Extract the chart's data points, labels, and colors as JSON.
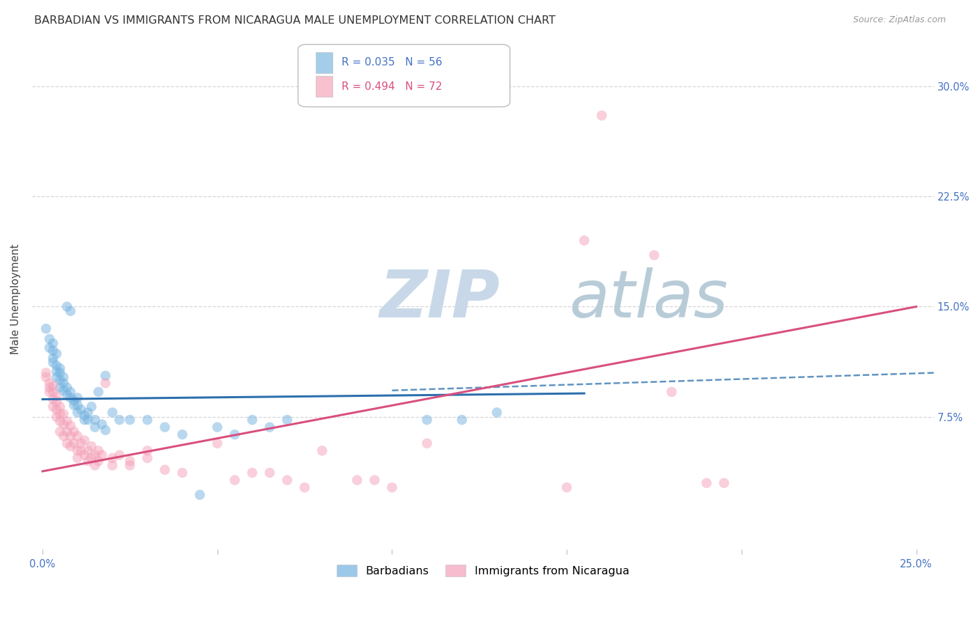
{
  "title": "BARBADIAN VS IMMIGRANTS FROM NICARAGUA MALE UNEMPLOYMENT CORRELATION CHART",
  "source": "Source: ZipAtlas.com",
  "ylabel_label": "Male Unemployment",
  "xlim": [
    -0.003,
    0.255
  ],
  "ylim": [
    -0.015,
    0.325
  ],
  "xtick_positions": [
    0.0,
    0.05,
    0.1,
    0.15,
    0.2,
    0.25
  ],
  "xticklabels": [
    "0.0%",
    "",
    "",
    "",
    "",
    "25.0%"
  ],
  "ytick_positions": [
    0.075,
    0.15,
    0.225,
    0.3
  ],
  "yticklabels": [
    "7.5%",
    "15.0%",
    "22.5%",
    "30.0%"
  ],
  "legend_r_blue": "R = 0.035",
  "legend_n_blue": "N = 56",
  "legend_r_pink": "R = 0.494",
  "legend_n_pink": "N = 72",
  "blue_color": "#74b3e0",
  "pink_color": "#f4a0b8",
  "blue_line_color": "#2c6fad",
  "pink_line_color": "#d94f7e",
  "blue_line": [
    [
      0.0,
      0.087
    ],
    [
      0.155,
      0.091
    ]
  ],
  "blue_dash_line": [
    [
      0.1,
      0.093
    ],
    [
      0.255,
      0.105
    ]
  ],
  "pink_line": [
    [
      0.0,
      0.038
    ],
    [
      0.25,
      0.15
    ]
  ],
  "blue_scatter": [
    [
      0.001,
      0.135
    ],
    [
      0.002,
      0.128
    ],
    [
      0.002,
      0.122
    ],
    [
      0.003,
      0.125
    ],
    [
      0.003,
      0.12
    ],
    [
      0.003,
      0.115
    ],
    [
      0.003,
      0.112
    ],
    [
      0.004,
      0.118
    ],
    [
      0.004,
      0.11
    ],
    [
      0.004,
      0.106
    ],
    [
      0.004,
      0.102
    ],
    [
      0.005,
      0.108
    ],
    [
      0.005,
      0.105
    ],
    [
      0.005,
      0.1
    ],
    [
      0.005,
      0.095
    ],
    [
      0.006,
      0.102
    ],
    [
      0.006,
      0.098
    ],
    [
      0.006,
      0.093
    ],
    [
      0.007,
      0.095
    ],
    [
      0.007,
      0.09
    ],
    [
      0.007,
      0.15
    ],
    [
      0.008,
      0.147
    ],
    [
      0.008,
      0.092
    ],
    [
      0.008,
      0.088
    ],
    [
      0.009,
      0.086
    ],
    [
      0.009,
      0.083
    ],
    [
      0.01,
      0.088
    ],
    [
      0.01,
      0.083
    ],
    [
      0.01,
      0.078
    ],
    [
      0.011,
      0.08
    ],
    [
      0.012,
      0.076
    ],
    [
      0.012,
      0.073
    ],
    [
      0.013,
      0.078
    ],
    [
      0.013,
      0.073
    ],
    [
      0.014,
      0.082
    ],
    [
      0.015,
      0.073
    ],
    [
      0.015,
      0.068
    ],
    [
      0.016,
      0.092
    ],
    [
      0.017,
      0.07
    ],
    [
      0.018,
      0.103
    ],
    [
      0.018,
      0.066
    ],
    [
      0.02,
      0.078
    ],
    [
      0.022,
      0.073
    ],
    [
      0.025,
      0.073
    ],
    [
      0.03,
      0.073
    ],
    [
      0.035,
      0.068
    ],
    [
      0.04,
      0.063
    ],
    [
      0.045,
      0.022
    ],
    [
      0.05,
      0.068
    ],
    [
      0.055,
      0.063
    ],
    [
      0.06,
      0.073
    ],
    [
      0.065,
      0.068
    ],
    [
      0.07,
      0.073
    ],
    [
      0.11,
      0.073
    ],
    [
      0.12,
      0.073
    ],
    [
      0.13,
      0.078
    ]
  ],
  "pink_scatter": [
    [
      0.001,
      0.105
    ],
    [
      0.001,
      0.102
    ],
    [
      0.002,
      0.098
    ],
    [
      0.002,
      0.095
    ],
    [
      0.002,
      0.092
    ],
    [
      0.003,
      0.096
    ],
    [
      0.003,
      0.092
    ],
    [
      0.003,
      0.087
    ],
    [
      0.003,
      0.082
    ],
    [
      0.004,
      0.089
    ],
    [
      0.004,
      0.085
    ],
    [
      0.004,
      0.08
    ],
    [
      0.004,
      0.075
    ],
    [
      0.005,
      0.082
    ],
    [
      0.005,
      0.077
    ],
    [
      0.005,
      0.072
    ],
    [
      0.005,
      0.065
    ],
    [
      0.006,
      0.077
    ],
    [
      0.006,
      0.07
    ],
    [
      0.006,
      0.062
    ],
    [
      0.007,
      0.072
    ],
    [
      0.007,
      0.065
    ],
    [
      0.007,
      0.057
    ],
    [
      0.008,
      0.069
    ],
    [
      0.008,
      0.062
    ],
    [
      0.008,
      0.055
    ],
    [
      0.009,
      0.065
    ],
    [
      0.009,
      0.057
    ],
    [
      0.01,
      0.062
    ],
    [
      0.01,
      0.052
    ],
    [
      0.01,
      0.047
    ],
    [
      0.011,
      0.057
    ],
    [
      0.011,
      0.052
    ],
    [
      0.012,
      0.059
    ],
    [
      0.012,
      0.049
    ],
    [
      0.013,
      0.052
    ],
    [
      0.013,
      0.045
    ],
    [
      0.014,
      0.055
    ],
    [
      0.014,
      0.047
    ],
    [
      0.015,
      0.049
    ],
    [
      0.015,
      0.042
    ],
    [
      0.016,
      0.052
    ],
    [
      0.016,
      0.045
    ],
    [
      0.017,
      0.049
    ],
    [
      0.018,
      0.098
    ],
    [
      0.02,
      0.047
    ],
    [
      0.02,
      0.042
    ],
    [
      0.022,
      0.049
    ],
    [
      0.025,
      0.045
    ],
    [
      0.025,
      0.042
    ],
    [
      0.03,
      0.052
    ],
    [
      0.03,
      0.047
    ],
    [
      0.035,
      0.039
    ],
    [
      0.04,
      0.037
    ],
    [
      0.05,
      0.057
    ],
    [
      0.055,
      0.032
    ],
    [
      0.06,
      0.037
    ],
    [
      0.065,
      0.037
    ],
    [
      0.07,
      0.032
    ],
    [
      0.075,
      0.027
    ],
    [
      0.08,
      0.052
    ],
    [
      0.09,
      0.032
    ],
    [
      0.095,
      0.032
    ],
    [
      0.1,
      0.027
    ],
    [
      0.11,
      0.057
    ],
    [
      0.15,
      0.027
    ],
    [
      0.155,
      0.195
    ],
    [
      0.16,
      0.28
    ],
    [
      0.175,
      0.185
    ],
    [
      0.18,
      0.092
    ],
    [
      0.19,
      0.03
    ],
    [
      0.195,
      0.03
    ]
  ],
  "background_color": "#ffffff",
  "grid_color": "#cccccc",
  "title_fontsize": 11.5,
  "axis_label_fontsize": 11,
  "tick_fontsize": 10.5,
  "watermark_zip": "ZIP",
  "watermark_atlas": "atlas",
  "watermark_color_zip": "#c8d8e8",
  "watermark_color_atlas": "#b8ccd8"
}
